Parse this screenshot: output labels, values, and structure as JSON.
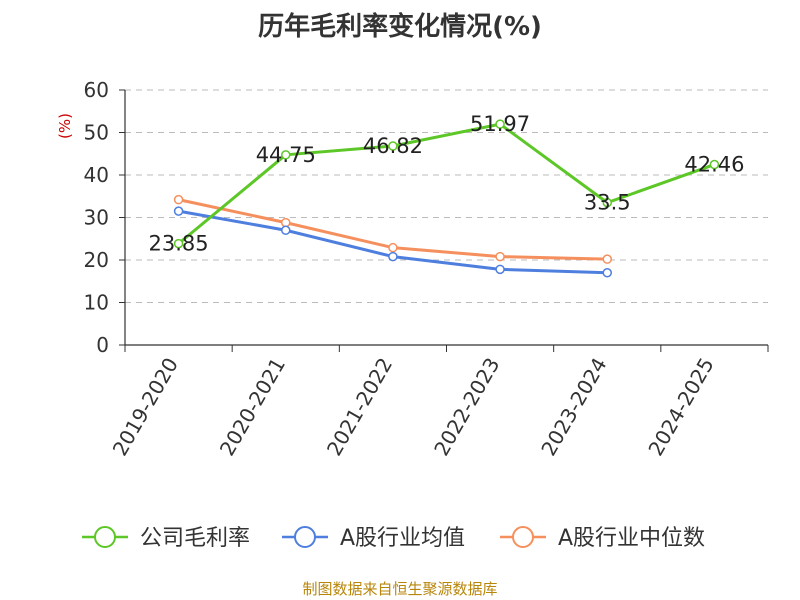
{
  "chart_data": {
    "type": "line",
    "title": "历年毛利率变化情况(%)",
    "ylabel": "(%)",
    "xlabel": "",
    "ylim": [
      0,
      60
    ],
    "yticks": [
      0,
      10,
      20,
      30,
      40,
      50,
      60
    ],
    "grid": true,
    "legend_position": "bottom",
    "categories": [
      "2019-2020",
      "2020-2021",
      "2021-2022",
      "2022-2023",
      "2023-2024",
      "2024-2025"
    ],
    "series": [
      {
        "name": "公司毛利率",
        "color": "#5cc726",
        "values": [
          23.85,
          44.75,
          46.82,
          51.97,
          33.5,
          42.46
        ],
        "labels": [
          "23.85",
          "44.75",
          "46.82",
          "51.97",
          "33.5",
          "42.46"
        ]
      },
      {
        "name": "A股行业均值",
        "color": "#4e7fde",
        "values": [
          31.5,
          27,
          20.8,
          17.8,
          17.0,
          null
        ]
      },
      {
        "name": "A股行业中位数",
        "color": "#f5905e",
        "values": [
          34.2,
          28.8,
          22.9,
          20.8,
          20.2,
          null
        ]
      }
    ]
  },
  "source": "制图数据来自恒生聚源数据库"
}
